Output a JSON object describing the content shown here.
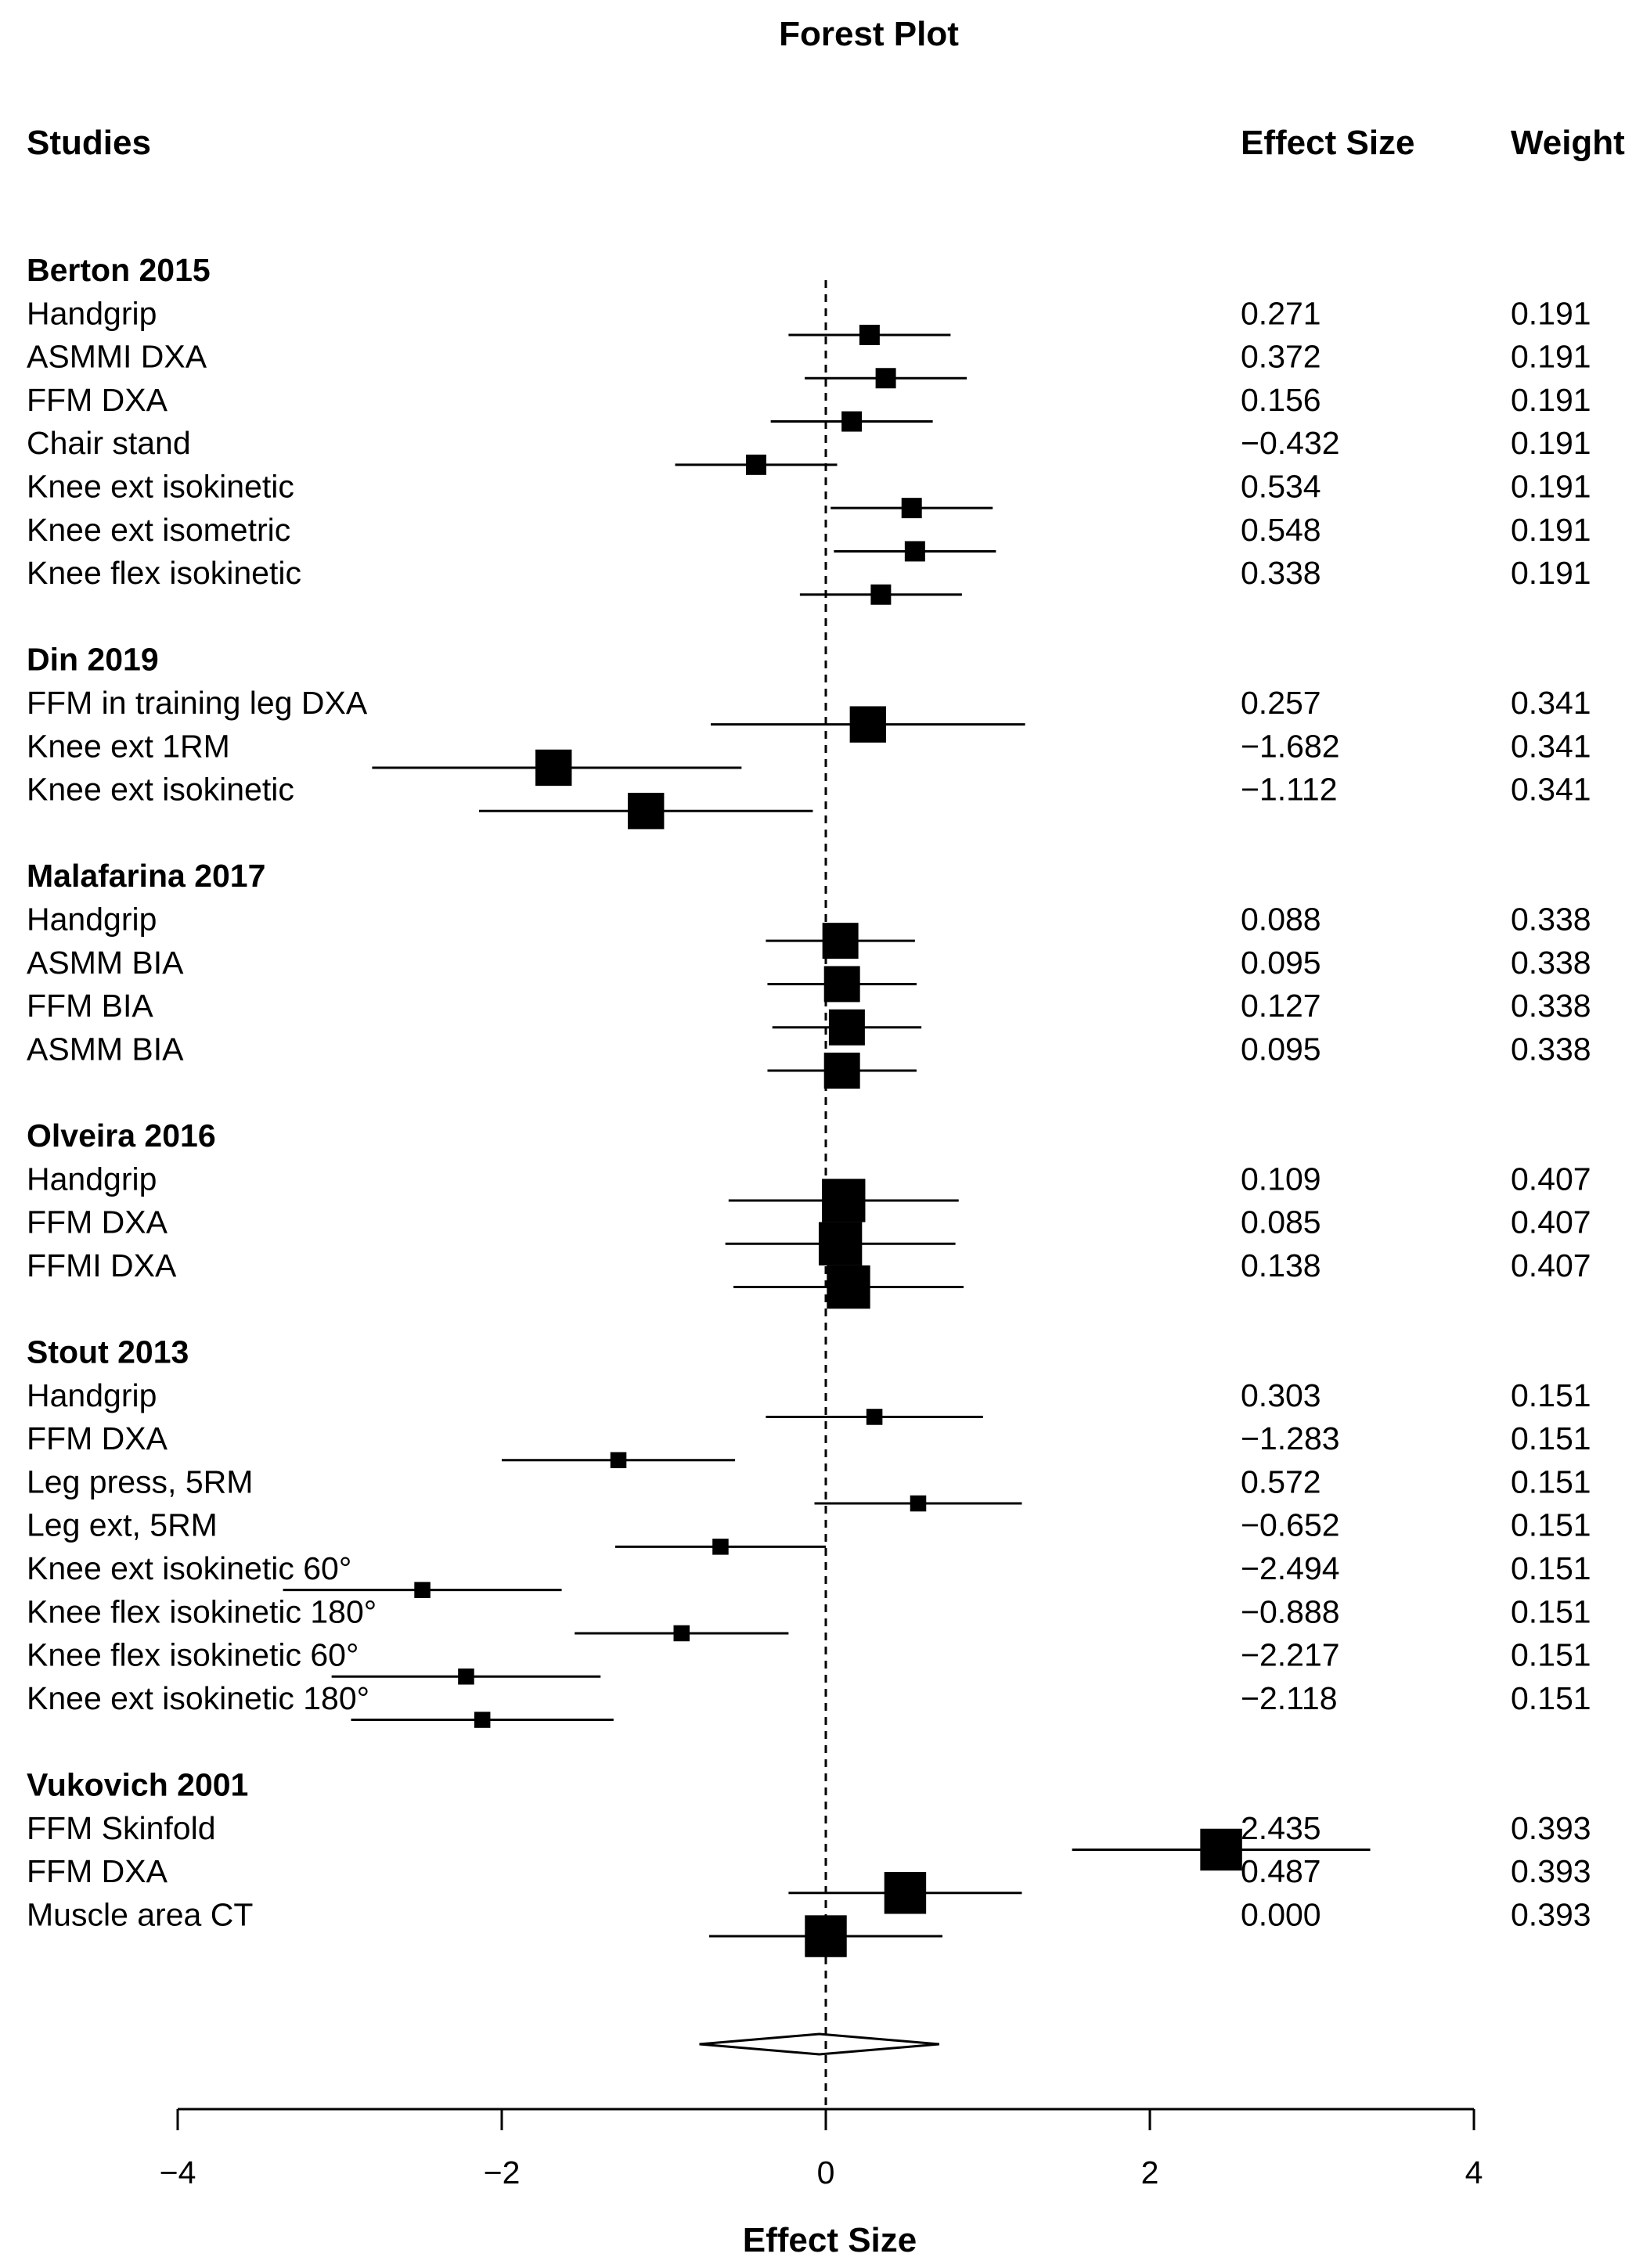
{
  "chart_data": {
    "type": "forest",
    "title": "Forest Plot",
    "xlabel": "Effect Size",
    "ylabel": "",
    "column_headers": {
      "studies": "Studies",
      "effect_size": "Effect Size",
      "weight": "Weight"
    },
    "xlim": [
      -4,
      4
    ],
    "x_ticks": [
      -4,
      -2,
      0,
      2,
      4
    ],
    "x_tick_labels": [
      "−4",
      "−2",
      "0",
      "2",
      "4"
    ],
    "reference_line": 0,
    "groups": [
      {
        "name": "Berton 2015",
        "outcomes": [
          {
            "label": "Handgrip",
            "es_text": "0.271",
            "weight_text": "0.191"
          },
          {
            "label": "ASMMI DXA",
            "es_text": "0.372",
            "weight_text": "0.191"
          },
          {
            "label": "FFM DXA",
            "es_text": "0.156",
            "weight_text": "0.191"
          },
          {
            "label": "Chair stand",
            "es_text": "−0.432",
            "weight_text": "0.191"
          },
          {
            "label": "Knee  ext isokinetic",
            "es_text": "0.534",
            "weight_text": "0.191"
          },
          {
            "label": "Knee  ext  isometric",
            "es_text": "0.548",
            "weight_text": "0.191"
          },
          {
            "label": "Knee flex isokinetic",
            "es_text": "0.338",
            "weight_text": "0.191"
          }
        ],
        "markers": [
          {
            "est": 0.27,
            "lo": -0.23,
            "hi": 0.77
          },
          {
            "est": 0.37,
            "lo": -0.13,
            "hi": 0.87
          },
          {
            "est": 0.16,
            "lo": -0.34,
            "hi": 0.66
          },
          {
            "est": -0.43,
            "lo": -0.93,
            "hi": 0.07
          },
          {
            "est": 0.53,
            "lo": 0.03,
            "hi": 1.03
          },
          {
            "est": 0.55,
            "lo": 0.05,
            "hi": 1.05
          },
          {
            "est": 0.34,
            "lo": -0.16,
            "hi": 0.84
          }
        ],
        "marker_size": 0.191
      },
      {
        "name": "Din 2019",
        "outcomes": [
          {
            "label": "FFM in training leg DXA",
            "es_text": "0.257",
            "weight_text": "0.341"
          },
          {
            "label": "Knee ext 1RM",
            "es_text": "−1.682",
            "weight_text": "0.341"
          },
          {
            "label": "Knee ext isokinetic",
            "es_text": "−1.112",
            "weight_text": "0.341"
          }
        ],
        "markers": [
          {
            "est": 0.26,
            "lo": -0.71,
            "hi": 1.23
          },
          {
            "est": -1.68,
            "lo": -2.8,
            "hi": -0.52
          },
          {
            "est": -1.11,
            "lo": -2.14,
            "hi": -0.08
          }
        ],
        "marker_size": 0.341
      },
      {
        "name": "Malafarina 2017",
        "outcomes": [
          {
            "label": "Handgrip",
            "es_text": "0.088",
            "weight_text": "0.338"
          },
          {
            "label": "ASMM BIA",
            "es_text": "0.095",
            "weight_text": "0.338"
          },
          {
            "label": "FFM BIA",
            "es_text": "0.127",
            "weight_text": "0.338"
          },
          {
            "label": "ASMM BIA",
            "es_text": "0.095",
            "weight_text": "0.338"
          }
        ],
        "markers": [
          {
            "est": 0.09,
            "lo": -0.37,
            "hi": 0.55
          },
          {
            "est": 0.1,
            "lo": -0.36,
            "hi": 0.56
          },
          {
            "est": 0.13,
            "lo": -0.33,
            "hi": 0.59
          },
          {
            "est": 0.1,
            "lo": -0.36,
            "hi": 0.56
          }
        ],
        "marker_size": 0.338
      },
      {
        "name": "Olveira 2016",
        "outcomes": [
          {
            "label": "Handgrip",
            "es_text": "0.109",
            "weight_text": "0.407"
          },
          {
            "label": "FFM DXA",
            "es_text": "0.085",
            "weight_text": "0.407"
          },
          {
            "label": "FFMI DXA",
            "es_text": "0.138",
            "weight_text": "0.407"
          }
        ],
        "markers": [
          {
            "est": 0.11,
            "lo": -0.6,
            "hi": 0.82
          },
          {
            "est": 0.09,
            "lo": -0.62,
            "hi": 0.8
          },
          {
            "est": 0.14,
            "lo": -0.57,
            "hi": 0.85
          }
        ],
        "marker_size": 0.407
      },
      {
        "name": "Stout 2013",
        "outcomes": [
          {
            "label": "Handgrip",
            "es_text": "0.303",
            "weight_text": "0.151"
          },
          {
            "label": "FFM DXA",
            "es_text": "−1.283",
            "weight_text": "0.151"
          },
          {
            "label": "Leg press, 5RM",
            "es_text": "0.572",
            "weight_text": "0.151"
          },
          {
            "label": "Leg ext, 5RM",
            "es_text": "−0.652",
            "weight_text": "0.151"
          },
          {
            "label": "Knee ext isokinetic 60°",
            "es_text": "−2.494",
            "weight_text": "0.151"
          },
          {
            "label": "Knee flex isokinetic 180°",
            "es_text": "−0.888",
            "weight_text": "0.151"
          },
          {
            "label": "Knee flex isokinetic 60°",
            "es_text": "−2.217",
            "weight_text": "0.151"
          },
          {
            "label": "Knee ext isokinetic 180°",
            "es_text": "−2.118",
            "weight_text": "0.151"
          }
        ],
        "markers": [
          {
            "est": 0.3,
            "lo": -0.37,
            "hi": 0.97
          },
          {
            "est": -1.28,
            "lo": -2.0,
            "hi": -0.56
          },
          {
            "est": 0.57,
            "lo": -0.07,
            "hi": 1.21
          },
          {
            "est": -0.65,
            "lo": -1.3,
            "hi": 0.0
          },
          {
            "est": -2.49,
            "lo": -3.35,
            "hi": -1.63
          },
          {
            "est": -0.89,
            "lo": -1.55,
            "hi": -0.23
          },
          {
            "est": -2.22,
            "lo": -3.05,
            "hi": -1.39
          },
          {
            "est": -2.12,
            "lo": -2.93,
            "hi": -1.31
          }
        ],
        "marker_size": 0.151
      },
      {
        "name": "Vukovich 2001",
        "outcomes": [
          {
            "label": "FFM Skinfold",
            "es_text": "2.435",
            "weight_text": "0.393"
          },
          {
            "label": "FFM DXA",
            "es_text": "0.487",
            "weight_text": "0.393"
          },
          {
            "label": "Muscle area CT",
            "es_text": "0.000",
            "weight_text": "0.393"
          }
        ],
        "markers": [
          {
            "est": 2.44,
            "lo": 1.52,
            "hi": 3.36
          },
          {
            "est": 0.49,
            "lo": -0.23,
            "hi": 1.21
          },
          {
            "est": 0.0,
            "lo": -0.72,
            "hi": 0.72
          }
        ],
        "marker_size": 0.393
      }
    ],
    "summary": {
      "est": -0.04,
      "lo": -0.78,
      "hi": 0.7
    }
  }
}
